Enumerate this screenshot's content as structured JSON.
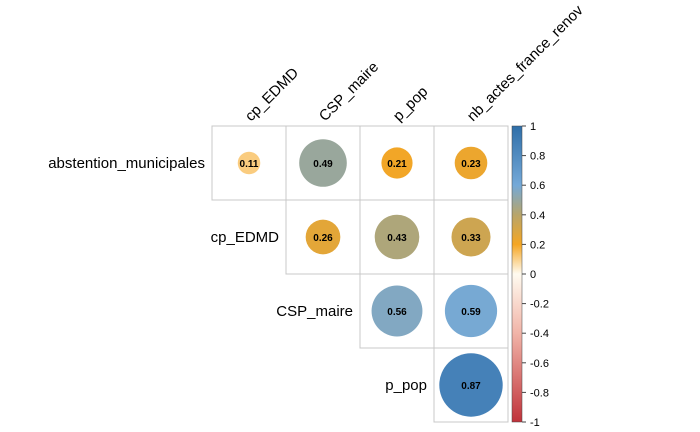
{
  "chart_data": {
    "type": "heatmap",
    "subtype": "correlation-upper",
    "rows": [
      "abstention_municipales",
      "cp_EDMD",
      "CSP_maire",
      "p_pop"
    ],
    "columns": [
      "cp_EDMD",
      "CSP_maire",
      "p_pop",
      "nb_actes_france_renov"
    ],
    "cells": [
      {
        "row": 0,
        "col": 0,
        "value": 0.11,
        "label": "0.11"
      },
      {
        "row": 0,
        "col": 1,
        "value": 0.49,
        "label": "0.49"
      },
      {
        "row": 0,
        "col": 2,
        "value": 0.21,
        "label": "0.21"
      },
      {
        "row": 0,
        "col": 3,
        "value": 0.23,
        "label": "0.23"
      },
      {
        "row": 1,
        "col": 1,
        "value": 0.26,
        "label": "0.26"
      },
      {
        "row": 1,
        "col": 2,
        "value": 0.43,
        "label": "0.43"
      },
      {
        "row": 1,
        "col": 3,
        "value": 0.33,
        "label": "0.33"
      },
      {
        "row": 2,
        "col": 2,
        "value": 0.56,
        "label": "0.56"
      },
      {
        "row": 2,
        "col": 3,
        "value": 0.59,
        "label": "0.59"
      },
      {
        "row": 3,
        "col": 3,
        "value": 0.87,
        "label": "0.87"
      }
    ],
    "colorbar": {
      "range": [
        -1,
        1
      ],
      "ticks": [
        "1",
        "0.8",
        "0.6",
        "0.4",
        "0.2",
        "0",
        "-0.2",
        "-0.4",
        "-0.6",
        "-0.8",
        "-1"
      ],
      "colors": {
        "neg1": "#c0323a",
        "neg04": "#f1b4a8",
        "zero": "#fffbf0",
        "pos02": "#f5a623",
        "pos04": "#b8a56a",
        "pos06": "#74a9d8",
        "pos1": "#2f6ea8"
      }
    }
  }
}
